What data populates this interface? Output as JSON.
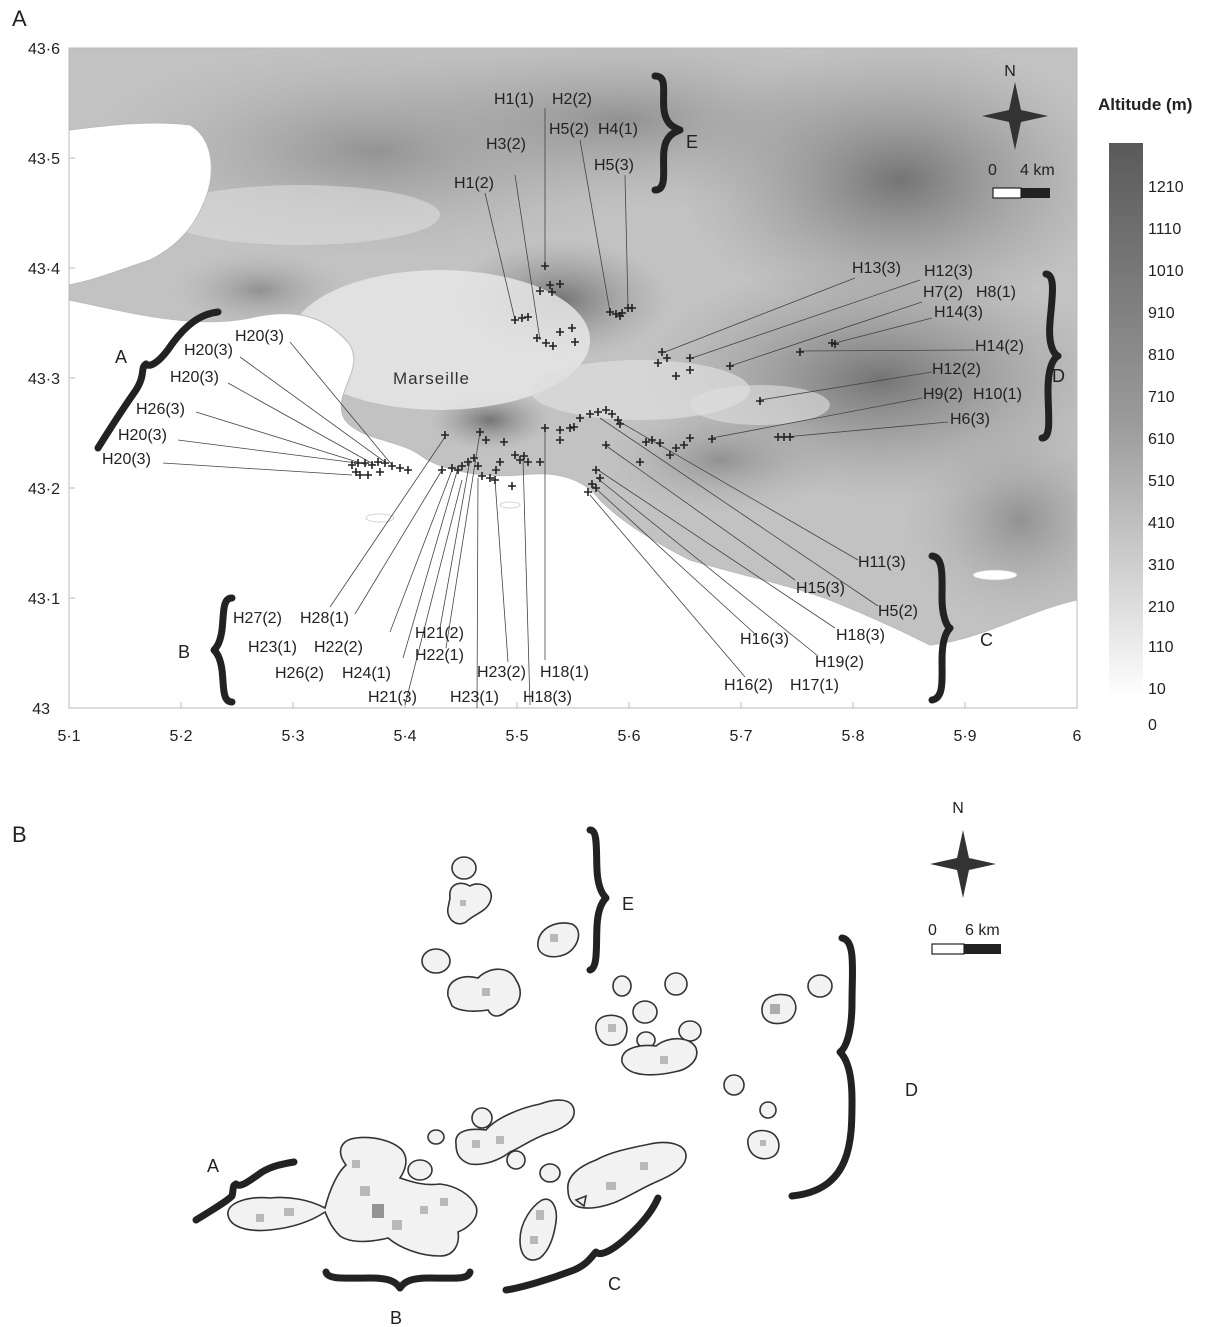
{
  "panels": {
    "a": {
      "label": "A",
      "city": "Marseille",
      "y_ticks": [
        "43·6",
        "43·5",
        "43·4",
        "43·3",
        "43·2",
        "43·1",
        "43"
      ],
      "x_ticks": [
        "5·1",
        "5·2",
        "5·3",
        "5·4",
        "5·5",
        "5·6",
        "5·7",
        "5·8",
        "5·9",
        "6"
      ],
      "north": "N",
      "scale": {
        "start": "0",
        "end": "4 km"
      },
      "legend": {
        "title": "Altitude (m)",
        "values": [
          "1210",
          "1110",
          "1010",
          "910",
          "810",
          "710",
          "610",
          "510",
          "410",
          "310",
          "210",
          "110",
          "10",
          "0"
        ]
      },
      "groups": [
        "A",
        "B",
        "C",
        "D",
        "E"
      ],
      "labels": [
        "H1(1)",
        "H2(2)",
        "H3(2)",
        "H5(2)",
        "H4(1)",
        "H5(3)",
        "H1(2)",
        "H13(3)",
        "H12(3)",
        "H7(2)",
        "H8(1)",
        "H14(3)",
        "H14(2)",
        "H12(2)",
        "H9(2)",
        "H10(1)",
        "H6(3)",
        "H20(3)",
        "H20(3)",
        "H20(3)",
        "H26(3)",
        "H20(3)",
        "H20(3)",
        "H11(3)",
        "H15(3)",
        "H5(2)",
        "H18(3)",
        "H16(3)",
        "H19(2)",
        "H16(2)",
        "H17(1)",
        "H27(2)",
        "H28(1)",
        "H23(1)",
        "H22(2)",
        "H26(2)",
        "H24(1)",
        "H21(3)",
        "H21(2)",
        "H22(1)",
        "H23(2)",
        "H18(1)",
        "H23(1)",
        "H18(3)"
      ]
    },
    "b": {
      "label": "B",
      "north": "N",
      "scale": {
        "start": "0",
        "end": "6 km"
      },
      "groups": [
        "A",
        "B",
        "C",
        "D",
        "E"
      ]
    }
  }
}
